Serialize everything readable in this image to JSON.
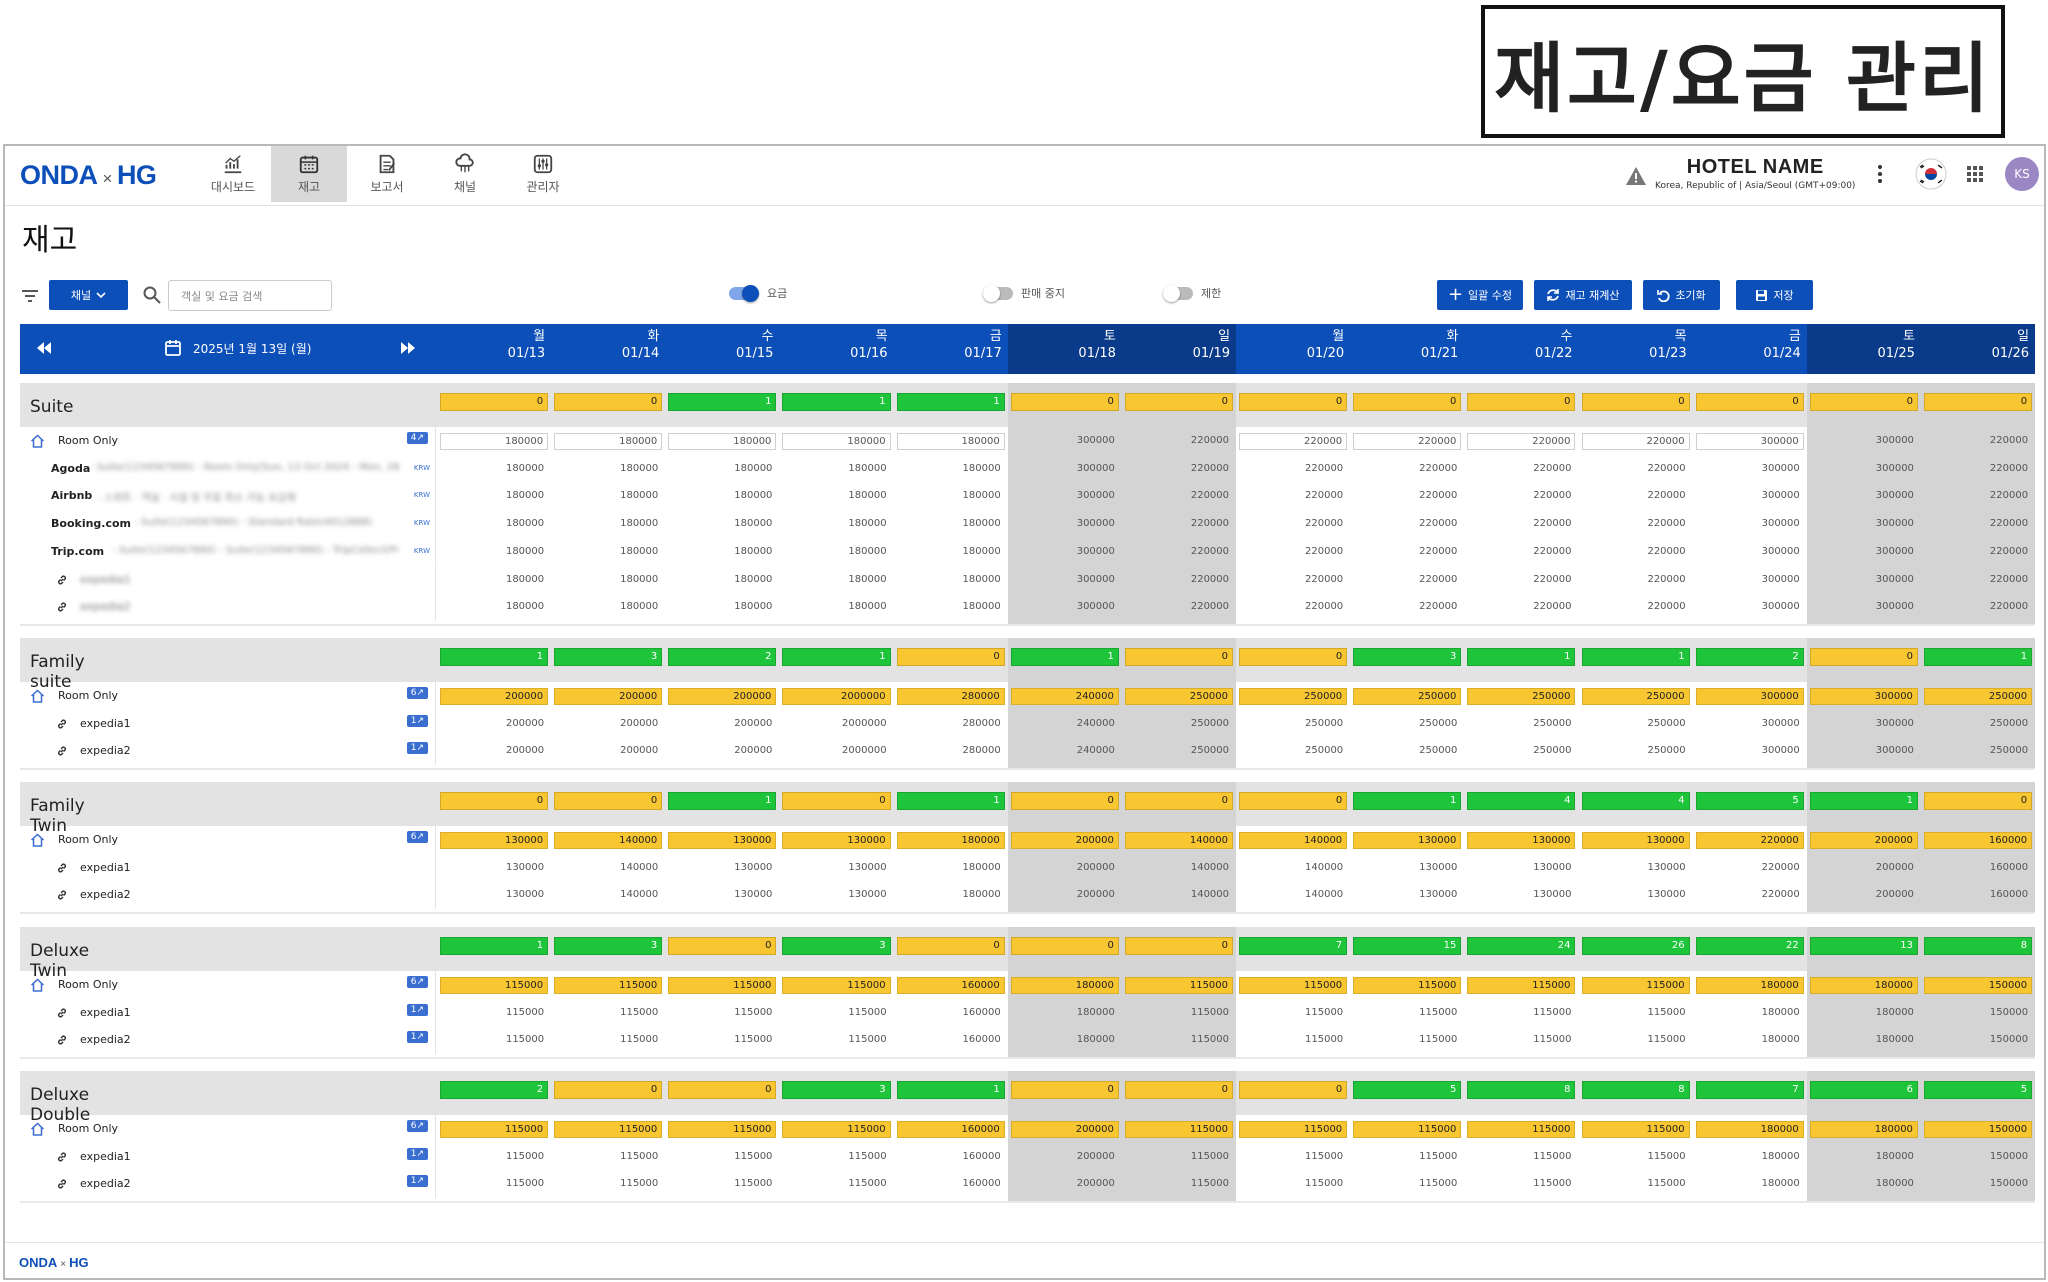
{
  "stamp": "재고/요금 관리",
  "logo": {
    "left": "ONDA",
    "x": "×",
    "right": "HG"
  },
  "nav": [
    {
      "label": "대시보드",
      "icon": "dashboard-icon"
    },
    {
      "label": "재고",
      "icon": "calendar-icon"
    },
    {
      "label": "보고서",
      "icon": "report-icon"
    },
    {
      "label": "채널",
      "icon": "channel-icon"
    },
    {
      "label": "관리자",
      "icon": "admin-icon"
    }
  ],
  "hotel": {
    "name": "HOTEL NAME",
    "sub": "Korea, Republic of | Asia/Seoul (GMT+09:00)"
  },
  "avatar": "KS",
  "page_title": "재고",
  "toolbar": {
    "channel_label": "채널",
    "search_placeholder": "객실 및 요금 검색",
    "toggle_rate": "요금",
    "toggle_stop": "판매 중지",
    "toggle_restrict": "제한",
    "bulk_edit": "일괄 수정",
    "recalc": "재고 재계산",
    "reset": "초기화",
    "save": "저장"
  },
  "calendar": {
    "date_label": "2025년 1월 13일 (월)"
  },
  "days": [
    {
      "dow": "월",
      "date": "01/13",
      "weekend": false
    },
    {
      "dow": "화",
      "date": "01/14",
      "weekend": false
    },
    {
      "dow": "수",
      "date": "01/15",
      "weekend": false
    },
    {
      "dow": "목",
      "date": "01/16",
      "weekend": false
    },
    {
      "dow": "금",
      "date": "01/17",
      "weekend": false
    },
    {
      "dow": "토",
      "date": "01/18",
      "weekend": true
    },
    {
      "dow": "일",
      "date": "01/19",
      "weekend": true
    },
    {
      "dow": "월",
      "date": "01/20",
      "weekend": false
    },
    {
      "dow": "화",
      "date": "01/21",
      "weekend": false
    },
    {
      "dow": "수",
      "date": "01/22",
      "weekend": false
    },
    {
      "dow": "목",
      "date": "01/23",
      "weekend": false
    },
    {
      "dow": "금",
      "date": "01/24",
      "weekend": false
    },
    {
      "dow": "토",
      "date": "01/25",
      "weekend": true
    },
    {
      "dow": "일",
      "date": "01/26",
      "weekend": true
    }
  ],
  "colors": {
    "green": "#1ec43a",
    "yellow": "#f7c631",
    "blue": "#0d4fb8",
    "weekend_bg": "#d4d4d4"
  },
  "rooms": [
    {
      "name": "Suite",
      "inventory": [
        0,
        0,
        1,
        1,
        1,
        0,
        0,
        0,
        0,
        0,
        0,
        0,
        0,
        0
      ],
      "rows": [
        {
          "type": "plan",
          "label": "Room Only",
          "badge": "4↗",
          "style": "white",
          "values": [
            180000,
            180000,
            180000,
            180000,
            180000,
            300000,
            220000,
            220000,
            220000,
            220000,
            220000,
            300000,
            300000,
            220000
          ]
        },
        {
          "type": "channel",
          "label": "Agoda",
          "suffix": " - Suite(1234567890) - Room Only(Sun, 13 Oct 2024 - Mon, 28 D...",
          "tag": "KRW",
          "values": [
            180000,
            180000,
            180000,
            180000,
            180000,
            300000,
            220000,
            220000,
            220000,
            220000,
            220000,
            300000,
            300000,
            220000
          ]
        },
        {
          "type": "channel",
          "label": "Airbnb",
          "suffix": " - 스위트 · 객실 · 시설 및 무료 취소 가능 요금제",
          "tag": "KRW",
          "values": [
            180000,
            180000,
            180000,
            180000,
            180000,
            300000,
            220000,
            220000,
            220000,
            220000,
            220000,
            300000,
            300000,
            220000
          ]
        },
        {
          "type": "channel",
          "label": "Booking.com",
          "suffix": " - Suite(1234567890) - Standard Rate(4012888)",
          "tag": "KRW",
          "values": [
            180000,
            180000,
            180000,
            180000,
            180000,
            300000,
            220000,
            220000,
            220000,
            220000,
            220000,
            300000,
            300000,
            220000
          ]
        },
        {
          "type": "channel",
          "label": "Trip.com",
          "suffix": " - Suite(1234567890) - Suite(1234567890) - TripCollect(Prepay)",
          "tag": "KRW",
          "values": [
            180000,
            180000,
            180000,
            180000,
            180000,
            300000,
            220000,
            220000,
            220000,
            220000,
            220000,
            300000,
            300000,
            220000
          ]
        },
        {
          "type": "link",
          "label": "expedia1",
          "blur": true,
          "values": [
            180000,
            180000,
            180000,
            180000,
            180000,
            300000,
            220000,
            220000,
            220000,
            220000,
            220000,
            300000,
            300000,
            220000
          ]
        },
        {
          "type": "link",
          "label": "expedia2",
          "blur": true,
          "values": [
            180000,
            180000,
            180000,
            180000,
            180000,
            300000,
            220000,
            220000,
            220000,
            220000,
            220000,
            300000,
            300000,
            220000
          ]
        }
      ]
    },
    {
      "name": "Family suite",
      "inventory": [
        1,
        3,
        2,
        1,
        0,
        1,
        0,
        0,
        3,
        1,
        1,
        2,
        0,
        1
      ],
      "rows": [
        {
          "type": "plan",
          "label": "Room Only",
          "badge": "6↗",
          "style": "yellow",
          "values": [
            200000,
            200000,
            200000,
            2000000,
            280000,
            240000,
            250000,
            250000,
            250000,
            250000,
            250000,
            300000,
            300000,
            250000
          ]
        },
        {
          "type": "link",
          "label": "expedia1",
          "badge": "1↗",
          "values": [
            200000,
            200000,
            200000,
            2000000,
            280000,
            240000,
            250000,
            250000,
            250000,
            250000,
            250000,
            300000,
            300000,
            250000
          ]
        },
        {
          "type": "link",
          "label": "expedia2",
          "badge": "1↗",
          "values": [
            200000,
            200000,
            200000,
            2000000,
            280000,
            240000,
            250000,
            250000,
            250000,
            250000,
            250000,
            300000,
            300000,
            250000
          ]
        }
      ]
    },
    {
      "name": "Family Twin",
      "inventory": [
        0,
        0,
        1,
        0,
        1,
        0,
        0,
        0,
        1,
        4,
        4,
        5,
        1,
        0
      ],
      "rows": [
        {
          "type": "plan",
          "label": "Room Only",
          "badge": "6↗",
          "style": "yellow",
          "values": [
            130000,
            140000,
            130000,
            130000,
            180000,
            200000,
            140000,
            140000,
            130000,
            130000,
            130000,
            220000,
            200000,
            160000
          ]
        },
        {
          "type": "link",
          "label": "expedia1",
          "values": [
            130000,
            140000,
            130000,
            130000,
            180000,
            200000,
            140000,
            140000,
            130000,
            130000,
            130000,
            220000,
            200000,
            160000
          ]
        },
        {
          "type": "link",
          "label": "expedia2",
          "values": [
            130000,
            140000,
            130000,
            130000,
            180000,
            200000,
            140000,
            140000,
            130000,
            130000,
            130000,
            220000,
            200000,
            160000
          ]
        }
      ]
    },
    {
      "name": "Deluxe Twin",
      "inventory": [
        1,
        3,
        0,
        3,
        0,
        0,
        0,
        7,
        15,
        24,
        26,
        22,
        13,
        8
      ],
      "rows": [
        {
          "type": "plan",
          "label": "Room Only",
          "badge": "6↗",
          "style": "yellow",
          "values": [
            115000,
            115000,
            115000,
            115000,
            160000,
            180000,
            115000,
            115000,
            115000,
            115000,
            115000,
            180000,
            180000,
            150000
          ]
        },
        {
          "type": "link",
          "label": "expedia1",
          "badge": "1↗",
          "values": [
            115000,
            115000,
            115000,
            115000,
            160000,
            180000,
            115000,
            115000,
            115000,
            115000,
            115000,
            180000,
            180000,
            150000
          ]
        },
        {
          "type": "link",
          "label": "expedia2",
          "badge": "1↗",
          "values": [
            115000,
            115000,
            115000,
            115000,
            160000,
            180000,
            115000,
            115000,
            115000,
            115000,
            115000,
            180000,
            180000,
            150000
          ]
        }
      ]
    },
    {
      "name": "Deluxe Double",
      "inventory": [
        2,
        0,
        0,
        3,
        1,
        0,
        0,
        0,
        5,
        8,
        8,
        7,
        6,
        5
      ],
      "rows": [
        {
          "type": "plan",
          "label": "Room Only",
          "badge": "6↗",
          "style": "yellow",
          "values": [
            115000,
            115000,
            115000,
            115000,
            160000,
            200000,
            115000,
            115000,
            115000,
            115000,
            115000,
            180000,
            180000,
            150000
          ]
        },
        {
          "type": "link",
          "label": "expedia1",
          "badge": "1↗",
          "values": [
            115000,
            115000,
            115000,
            115000,
            160000,
            200000,
            115000,
            115000,
            115000,
            115000,
            115000,
            180000,
            180000,
            150000
          ]
        },
        {
          "type": "link",
          "label": "expedia2",
          "badge": "1↗",
          "values": [
            115000,
            115000,
            115000,
            115000,
            160000,
            200000,
            115000,
            115000,
            115000,
            115000,
            115000,
            180000,
            180000,
            150000
          ]
        }
      ]
    }
  ],
  "footer": {
    "left": "ONDA",
    "x": "×",
    "right": "HG"
  }
}
